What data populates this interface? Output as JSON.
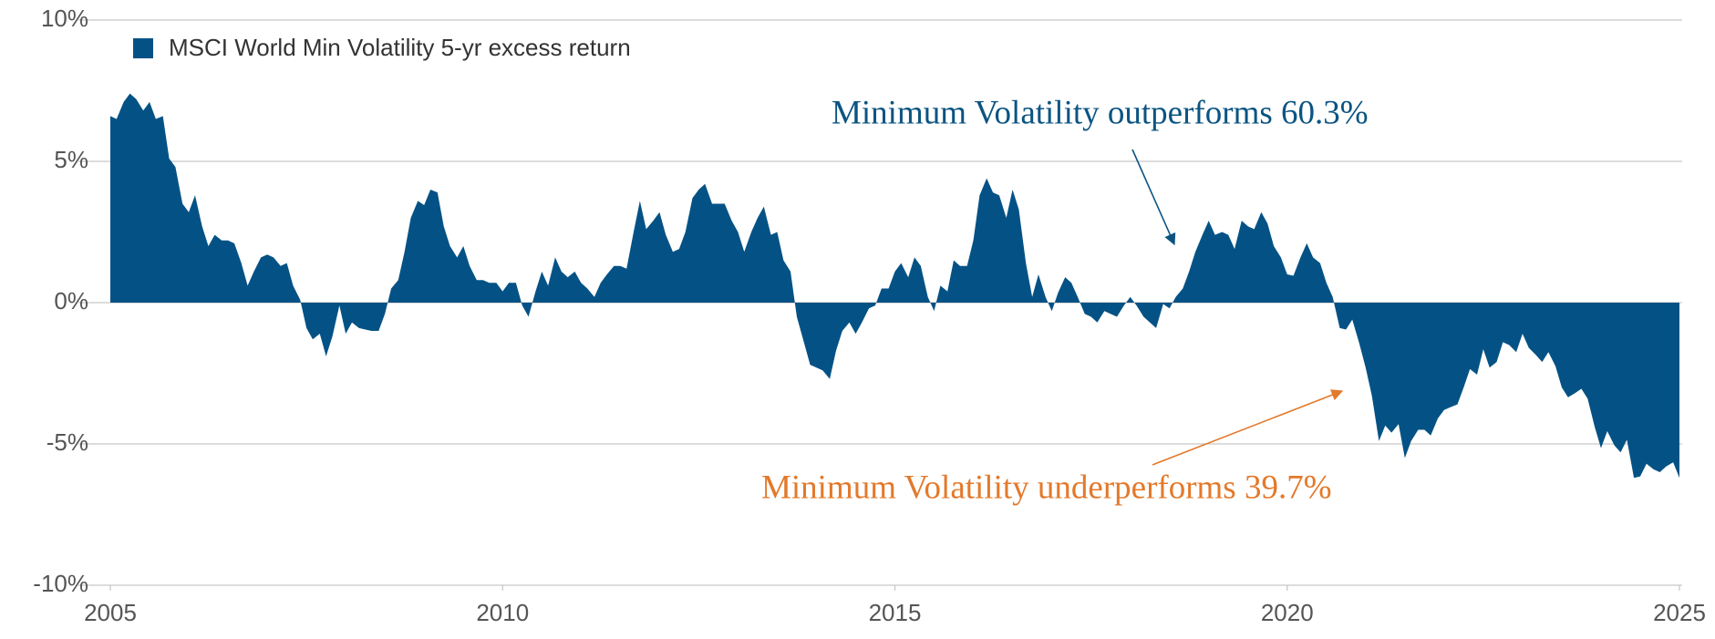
{
  "chart_data": {
    "type": "area",
    "legend": "top-left",
    "grid": true,
    "xlim": [
      2005,
      2025
    ],
    "xticks": [
      2005,
      2010,
      2015,
      2020,
      2025
    ],
    "ylim": [
      -10,
      10
    ],
    "yticks": [
      {
        "value": 10,
        "label": "10%"
      },
      {
        "value": 5,
        "label": "5%"
      },
      {
        "value": 0,
        "label": "0%"
      },
      {
        "value": -5,
        "label": "-5%"
      },
      {
        "value": -10,
        "label": "-10%"
      }
    ],
    "annotations": [
      {
        "text": "Minimum Volatility outperforms 60.3%",
        "color": "#0b5482"
      },
      {
        "text": "Minimum Volatility underperforms 39.7%",
        "color": "#e3792b"
      }
    ],
    "x": [
      2005,
      2005.08,
      2005.17,
      2005.25,
      2005.33,
      2005.42,
      2005.5,
      2005.58,
      2005.67,
      2005.75,
      2005.83,
      2005.92,
      2006,
      2006.08,
      2006.17,
      2006.25,
      2006.33,
      2006.42,
      2006.5,
      2006.58,
      2006.67,
      2006.75,
      2006.83,
      2006.92,
      2007,
      2007.08,
      2007.17,
      2007.25,
      2007.33,
      2007.42,
      2007.5,
      2007.58,
      2007.67,
      2007.75,
      2007.83,
      2007.92,
      2008,
      2008.08,
      2008.17,
      2008.25,
      2008.33,
      2008.42,
      2008.5,
      2008.58,
      2008.67,
      2008.75,
      2008.83,
      2008.92,
      2009,
      2009.08,
      2009.17,
      2009.25,
      2009.33,
      2009.42,
      2009.5,
      2009.58,
      2009.67,
      2009.75,
      2009.83,
      2009.92,
      2010,
      2010.08,
      2010.17,
      2010.25,
      2010.33,
      2010.42,
      2010.5,
      2010.58,
      2010.67,
      2010.75,
      2010.83,
      2010.92,
      2011,
      2011.08,
      2011.17,
      2011.25,
      2011.33,
      2011.42,
      2011.5,
      2011.58,
      2011.67,
      2011.75,
      2011.83,
      2011.92,
      2012,
      2012.08,
      2012.17,
      2012.25,
      2012.33,
      2012.42,
      2012.5,
      2012.58,
      2012.67,
      2012.75,
      2012.83,
      2012.92,
      2013,
      2013.08,
      2013.17,
      2013.25,
      2013.33,
      2013.42,
      2013.5,
      2013.58,
      2013.67,
      2013.75,
      2013.83,
      2013.92,
      2014,
      2014.08,
      2014.17,
      2014.25,
      2014.33,
      2014.42,
      2014.5,
      2014.58,
      2014.67,
      2014.75,
      2014.83,
      2014.92,
      2015,
      2015.08,
      2015.17,
      2015.25,
      2015.33,
      2015.42,
      2015.5,
      2015.58,
      2015.67,
      2015.75,
      2015.83,
      2015.92,
      2016,
      2016.08,
      2016.17,
      2016.25,
      2016.33,
      2016.42,
      2016.5,
      2016.58,
      2016.67,
      2016.75,
      2016.83,
      2016.92,
      2017,
      2017.08,
      2017.17,
      2017.25,
      2017.33,
      2017.42,
      2017.5,
      2017.58,
      2017.67,
      2017.75,
      2017.83,
      2017.92,
      2018,
      2018.08,
      2018.17,
      2018.25,
      2018.33,
      2018.42,
      2018.5,
      2018.58,
      2018.67,
      2018.75,
      2018.83,
      2018.92,
      2019,
      2019.08,
      2019.17,
      2019.25,
      2019.33,
      2019.42,
      2019.5,
      2019.58,
      2019.67,
      2019.75,
      2019.83,
      2019.92,
      2020,
      2020.08,
      2020.17,
      2020.25,
      2020.33,
      2020.42,
      2020.5,
      2020.58,
      2020.67,
      2020.75,
      2020.83,
      2020.92,
      2021,
      2021.08,
      2021.17,
      2021.25,
      2021.33,
      2021.42,
      2021.5,
      2021.58,
      2021.67,
      2021.75,
      2021.83,
      2021.92,
      2022,
      2022.08,
      2022.17,
      2022.25,
      2022.33,
      2022.42,
      2022.5,
      2022.58,
      2022.67,
      2022.75,
      2022.83,
      2022.92,
      2023,
      2023.08,
      2023.17,
      2023.25,
      2023.33,
      2023.42,
      2023.5,
      2023.58,
      2023.67,
      2023.75,
      2023.83,
      2023.92,
      2024,
      2024.08,
      2024.17,
      2024.25,
      2024.33,
      2024.42,
      2024.5,
      2024.58,
      2024.67,
      2024.75,
      2024.83,
      2024.92,
      2025
    ],
    "series": [
      {
        "name": "MSCI World Min Volatility 5-yr excess return",
        "color": "#045285",
        "values": [
          6.6,
          6.5,
          7.1,
          7.4,
          7.2,
          6.8,
          7.1,
          6.5,
          6.6,
          5.1,
          4.8,
          3.5,
          3.2,
          3.8,
          2.7,
          2.0,
          2.4,
          2.2,
          2.2,
          2.1,
          1.4,
          0.6,
          1.1,
          1.6,
          1.7,
          1.6,
          1.3,
          1.4,
          0.6,
          0.1,
          -0.9,
          -1.3,
          -1.1,
          -1.9,
          -1.2,
          -0.1,
          -1.1,
          -0.7,
          -0.9,
          -0.95,
          -1.0,
          -1.0,
          -0.4,
          0.5,
          0.8,
          1.8,
          3.0,
          3.6,
          3.45,
          4.0,
          3.9,
          2.7,
          2.0,
          1.6,
          2.0,
          1.3,
          0.8,
          0.8,
          0.7,
          0.7,
          0.4,
          0.7,
          0.7,
          -0.1,
          -0.5,
          0.4,
          1.1,
          0.6,
          1.6,
          1.1,
          0.9,
          1.1,
          0.7,
          0.5,
          0.2,
          0.7,
          1.0,
          1.3,
          1.3,
          1.2,
          2.5,
          3.6,
          2.6,
          2.9,
          3.2,
          2.4,
          1.8,
          1.9,
          2.5,
          3.7,
          4.0,
          4.2,
          3.5,
          3.5,
          3.5,
          2.9,
          2.5,
          1.8,
          2.5,
          3.0,
          3.4,
          2.4,
          2.5,
          1.5,
          1.1,
          -0.5,
          -1.3,
          -2.2,
          -2.3,
          -2.4,
          -2.7,
          -1.7,
          -1.0,
          -0.7,
          -1.1,
          -0.7,
          -0.2,
          -0.1,
          0.5,
          0.5,
          1.1,
          1.4,
          0.9,
          1.6,
          1.3,
          0.2,
          -0.3,
          0.6,
          0.4,
          1.5,
          1.3,
          1.3,
          2.2,
          3.8,
          4.4,
          3.9,
          3.8,
          3.0,
          4.0,
          3.3,
          1.4,
          0.2,
          1.0,
          0.2,
          -0.3,
          0.35,
          0.9,
          0.7,
          0.2,
          -0.4,
          -0.5,
          -0.7,
          -0.3,
          -0.4,
          -0.5,
          -0.1,
          0.2,
          -0.1,
          -0.5,
          -0.7,
          -0.9,
          -0.05,
          -0.2,
          0.2,
          0.5,
          1.1,
          1.8,
          2.4,
          2.9,
          2.4,
          2.5,
          2.4,
          1.9,
          2.9,
          2.7,
          2.6,
          3.2,
          2.8,
          2.0,
          1.6,
          1.0,
          0.95,
          1.6,
          2.1,
          1.6,
          1.4,
          0.7,
          0.2,
          -0.9,
          -0.95,
          -0.6,
          -1.45,
          -2.3,
          -3.3,
          -4.9,
          -4.35,
          -4.6,
          -4.3,
          -5.5,
          -4.9,
          -4.5,
          -4.5,
          -4.7,
          -4.1,
          -3.8,
          -3.7,
          -3.6,
          -3.0,
          -2.35,
          -2.55,
          -1.65,
          -2.3,
          -2.1,
          -1.4,
          -1.5,
          -1.75,
          -1.1,
          -1.6,
          -1.85,
          -2.1,
          -1.75,
          -2.25,
          -3.0,
          -3.35,
          -3.2,
          -3.05,
          -3.4,
          -4.4,
          -5.15,
          -4.55,
          -5.05,
          -5.3,
          -4.85,
          -6.2,
          -6.15,
          -5.7,
          -5.9,
          -6.0,
          -5.8,
          -5.65,
          -6.2
        ]
      }
    ]
  }
}
